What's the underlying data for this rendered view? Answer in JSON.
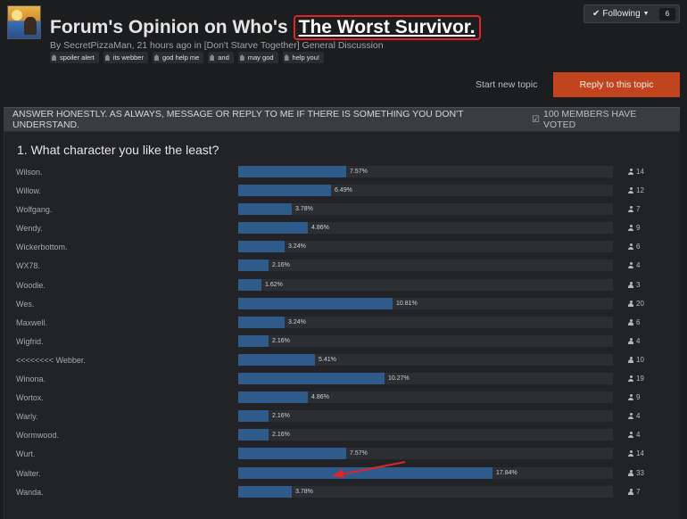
{
  "header": {
    "title_prefix": "Forum's Opinion on Who's",
    "title_highlight": "The Worst Survivor.",
    "byline": "By SecretPizzaMan, 21 hours ago in [Don't Starve Together] General Discussion",
    "tags": [
      "spoiler alert",
      "its webber",
      "god help me",
      "and",
      "may god",
      "help you!"
    ],
    "following_label": "Following",
    "following_count": "6"
  },
  "actions": {
    "start_topic": "Start new topic",
    "reply": "Reply to this topic"
  },
  "poll": {
    "instructions": "ANSWER HONESTLY. AS ALWAYS, MESSAGE OR REPLY TO ME IF THERE IS SOMETHING YOU DON'T UNDERSTAND.",
    "voted_label": "100 MEMBERS HAVE VOTED",
    "question": "1. What character you like the least?",
    "options": [
      {
        "name": "Wilson.",
        "percent_label": "7.57%",
        "percent": 7.57,
        "votes": "14"
      },
      {
        "name": "Willow.",
        "percent_label": "6.49%",
        "percent": 6.49,
        "votes": "12"
      },
      {
        "name": "Wolfgang.",
        "percent_label": "3.78%",
        "percent": 3.78,
        "votes": "7"
      },
      {
        "name": "Wendy.",
        "percent_label": "4.86%",
        "percent": 4.86,
        "votes": "9"
      },
      {
        "name": "Wickerbottom.",
        "percent_label": "3.24%",
        "percent": 3.24,
        "votes": "6"
      },
      {
        "name": "WX78.",
        "percent_label": "2.16%",
        "percent": 2.16,
        "votes": "4"
      },
      {
        "name": "Woodie.",
        "percent_label": "1.62%",
        "percent": 1.62,
        "votes": "3"
      },
      {
        "name": "Wes.",
        "percent_label": "10.81%",
        "percent": 10.81,
        "votes": "20"
      },
      {
        "name": "Maxwell.",
        "percent_label": "3.24%",
        "percent": 3.24,
        "votes": "6"
      },
      {
        "name": "Wigfrid.",
        "percent_label": "2.16%",
        "percent": 2.16,
        "votes": "4"
      },
      {
        "name": "<<<<<<<< Webber.",
        "percent_label": "5.41%",
        "percent": 5.41,
        "votes": "10"
      },
      {
        "name": "Winona.",
        "percent_label": "10.27%",
        "percent": 10.27,
        "votes": "19"
      },
      {
        "name": "Wortox.",
        "percent_label": "4.86%",
        "percent": 4.86,
        "votes": "9"
      },
      {
        "name": "Warly.",
        "percent_label": "2.16%",
        "percent": 2.16,
        "votes": "4"
      },
      {
        "name": "Wormwood.",
        "percent_label": "2.16%",
        "percent": 2.16,
        "votes": "4"
      },
      {
        "name": "Wurt.",
        "percent_label": "7.57%",
        "percent": 7.57,
        "votes": "14"
      },
      {
        "name": "Walter.",
        "percent_label": "17.84%",
        "percent": 17.84,
        "votes": "33"
      },
      {
        "name": "Wanda.",
        "percent_label": "3.78%",
        "percent": 3.78,
        "votes": "7"
      }
    ]
  },
  "colors": {
    "accent": "#c1441f",
    "bar": "#2f5b8c",
    "highlight_border": "#e0242b",
    "annotation_arrow": "#e0242b"
  },
  "icons": {
    "check": "✔",
    "voted": "☑"
  }
}
